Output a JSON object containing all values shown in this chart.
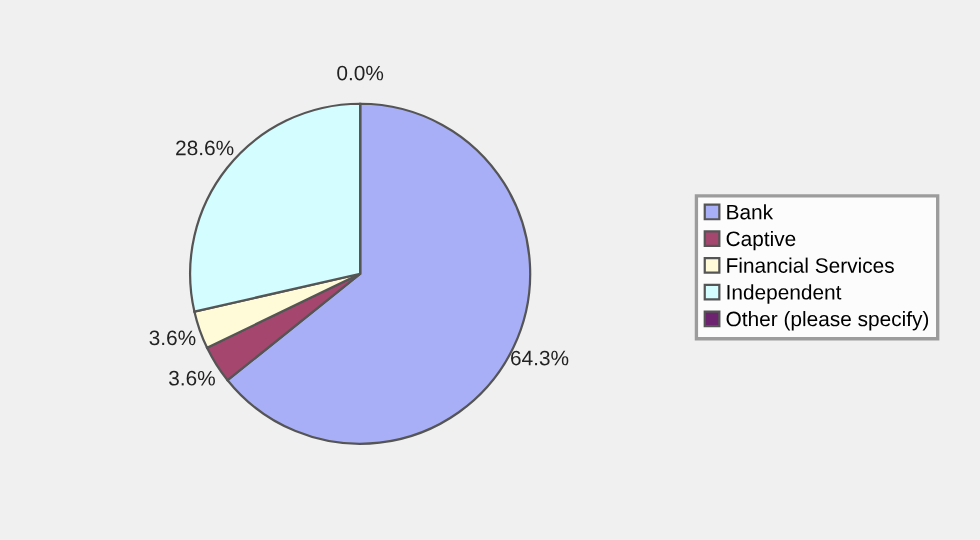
{
  "chart_data": {
    "type": "pie",
    "categories": [
      "Bank",
      "Captive",
      "Financial Services",
      "Independent",
      "Other (please specify)"
    ],
    "values": [
      64.3,
      3.6,
      3.6,
      28.6,
      0.0
    ],
    "colors": [
      "#a9aff7",
      "#a5466e",
      "#fffbd8",
      "#d3fdff",
      "#6e2370"
    ],
    "value_labels": [
      "64.3%",
      "3.6%",
      "3.6%",
      "28.6%",
      "0.0%"
    ],
    "legend": "right"
  }
}
